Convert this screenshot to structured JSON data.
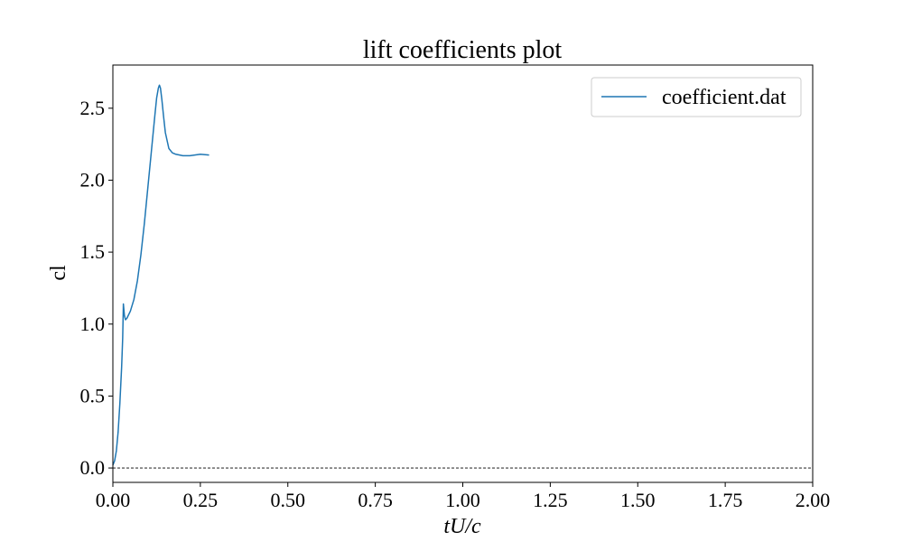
{
  "chart_data": {
    "type": "line",
    "title": "lift coefficients plot",
    "xlabel": "tU/c",
    "ylabel": "cl",
    "xlim": [
      0.0,
      2.0
    ],
    "ylim": [
      -0.1,
      2.8
    ],
    "xticks": [
      0.0,
      0.25,
      0.5,
      0.75,
      1.0,
      1.25,
      1.5,
      1.75,
      2.0
    ],
    "xtick_labels": [
      "0.00",
      "0.25",
      "0.50",
      "0.75",
      "1.00",
      "1.25",
      "1.50",
      "1.75",
      "2.00"
    ],
    "yticks": [
      0.0,
      0.5,
      1.0,
      1.5,
      2.0,
      2.5
    ],
    "ytick_labels": [
      "0.0",
      "0.5",
      "1.0",
      "1.5",
      "2.0",
      "2.5"
    ],
    "grid": false,
    "legend_position": "top-right",
    "reference_line": {
      "y": 0.0,
      "style": "dashed",
      "color": "#000000"
    },
    "series": [
      {
        "name": "coefficient.dat",
        "color": "#1f77b4",
        "points": [
          [
            0.0,
            0.02
          ],
          [
            0.005,
            0.05
          ],
          [
            0.01,
            0.12
          ],
          [
            0.015,
            0.25
          ],
          [
            0.02,
            0.45
          ],
          [
            0.025,
            0.7
          ],
          [
            0.028,
            0.9
          ],
          [
            0.03,
            1.14
          ],
          [
            0.033,
            1.06
          ],
          [
            0.036,
            1.03
          ],
          [
            0.04,
            1.04
          ],
          [
            0.05,
            1.09
          ],
          [
            0.06,
            1.17
          ],
          [
            0.07,
            1.3
          ],
          [
            0.08,
            1.48
          ],
          [
            0.09,
            1.7
          ],
          [
            0.1,
            1.95
          ],
          [
            0.11,
            2.2
          ],
          [
            0.12,
            2.45
          ],
          [
            0.125,
            2.57
          ],
          [
            0.13,
            2.64
          ],
          [
            0.133,
            2.66
          ],
          [
            0.136,
            2.64
          ],
          [
            0.14,
            2.56
          ],
          [
            0.145,
            2.44
          ],
          [
            0.15,
            2.33
          ],
          [
            0.16,
            2.22
          ],
          [
            0.17,
            2.19
          ],
          [
            0.18,
            2.18
          ],
          [
            0.2,
            2.17
          ],
          [
            0.22,
            2.17
          ],
          [
            0.25,
            2.18
          ],
          [
            0.275,
            2.175
          ]
        ]
      }
    ]
  }
}
